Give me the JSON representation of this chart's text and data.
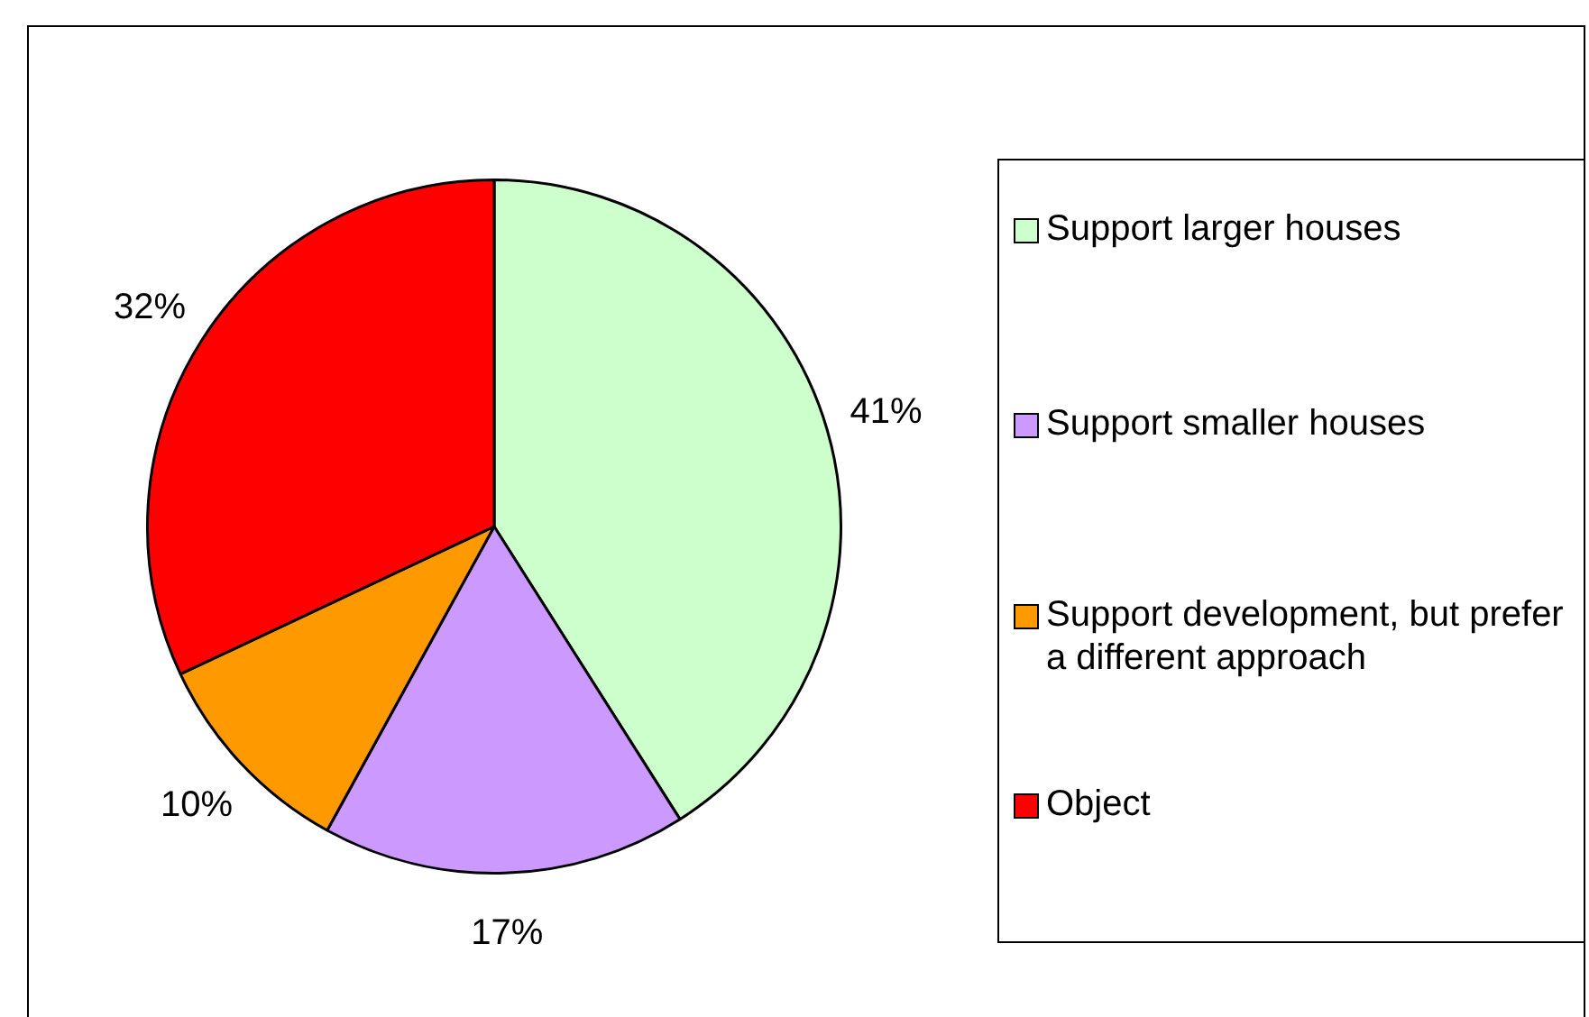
{
  "chart_data": {
    "type": "pie",
    "categories": [
      "Support larger houses",
      "Support smaller houses",
      "Support development, but prefer a different approach",
      "Object"
    ],
    "values": [
      41,
      17,
      10,
      32
    ],
    "colors": [
      "#ccffcc",
      "#cc99ff",
      "#ff9900",
      "#ff0000"
    ],
    "value_labels": [
      "41%",
      "17%",
      "10%",
      "32%"
    ],
    "legend": "right"
  }
}
